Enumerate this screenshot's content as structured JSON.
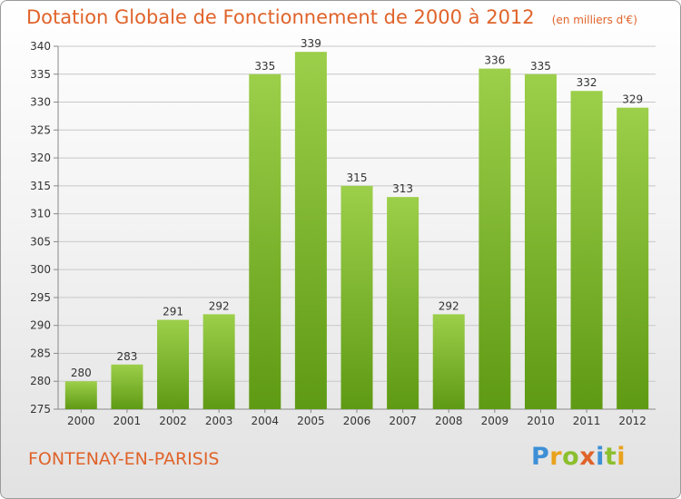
{
  "title": "Dotation Globale de Fonctionnement de 2000 à 2012",
  "unit_note": "(en milliers d'€)",
  "commune": "FONTENAY-EN-PARISIS",
  "logo": {
    "text": "Proxiti",
    "letters": [
      {
        "ch": "P",
        "color": "#3d8fd6"
      },
      {
        "ch": "r",
        "color": "#e8a21c"
      },
      {
        "ch": "o",
        "color": "#8bbf2e"
      },
      {
        "ch": "x",
        "color": "#e0632a"
      },
      {
        "ch": "i",
        "color": "#3d8fd6"
      },
      {
        "ch": "t",
        "color": "#8bbf2e"
      },
      {
        "ch": "i",
        "color": "#e8a21c"
      }
    ]
  },
  "colors": {
    "bar_light": "#9ccf4a",
    "bar_dark": "#5f9a14",
    "title": "#e0632a",
    "grid": "#c8c8c8"
  },
  "chart_data": {
    "type": "bar",
    "title": "Dotation Globale de Fonctionnement de 2000 à 2012",
    "categories": [
      "2000",
      "2001",
      "2002",
      "2003",
      "2004",
      "2005",
      "2006",
      "2007",
      "2008",
      "2009",
      "2010",
      "2011",
      "2012"
    ],
    "values": [
      280,
      283,
      291,
      292,
      335,
      339,
      315,
      313,
      292,
      336,
      335,
      332,
      329
    ],
    "ylim": [
      275,
      340
    ],
    "yticks": [
      275,
      280,
      285,
      290,
      295,
      300,
      305,
      310,
      315,
      320,
      325,
      330,
      335,
      340
    ],
    "xlabel": "",
    "ylabel": "",
    "grid": true,
    "data_labels": true
  }
}
